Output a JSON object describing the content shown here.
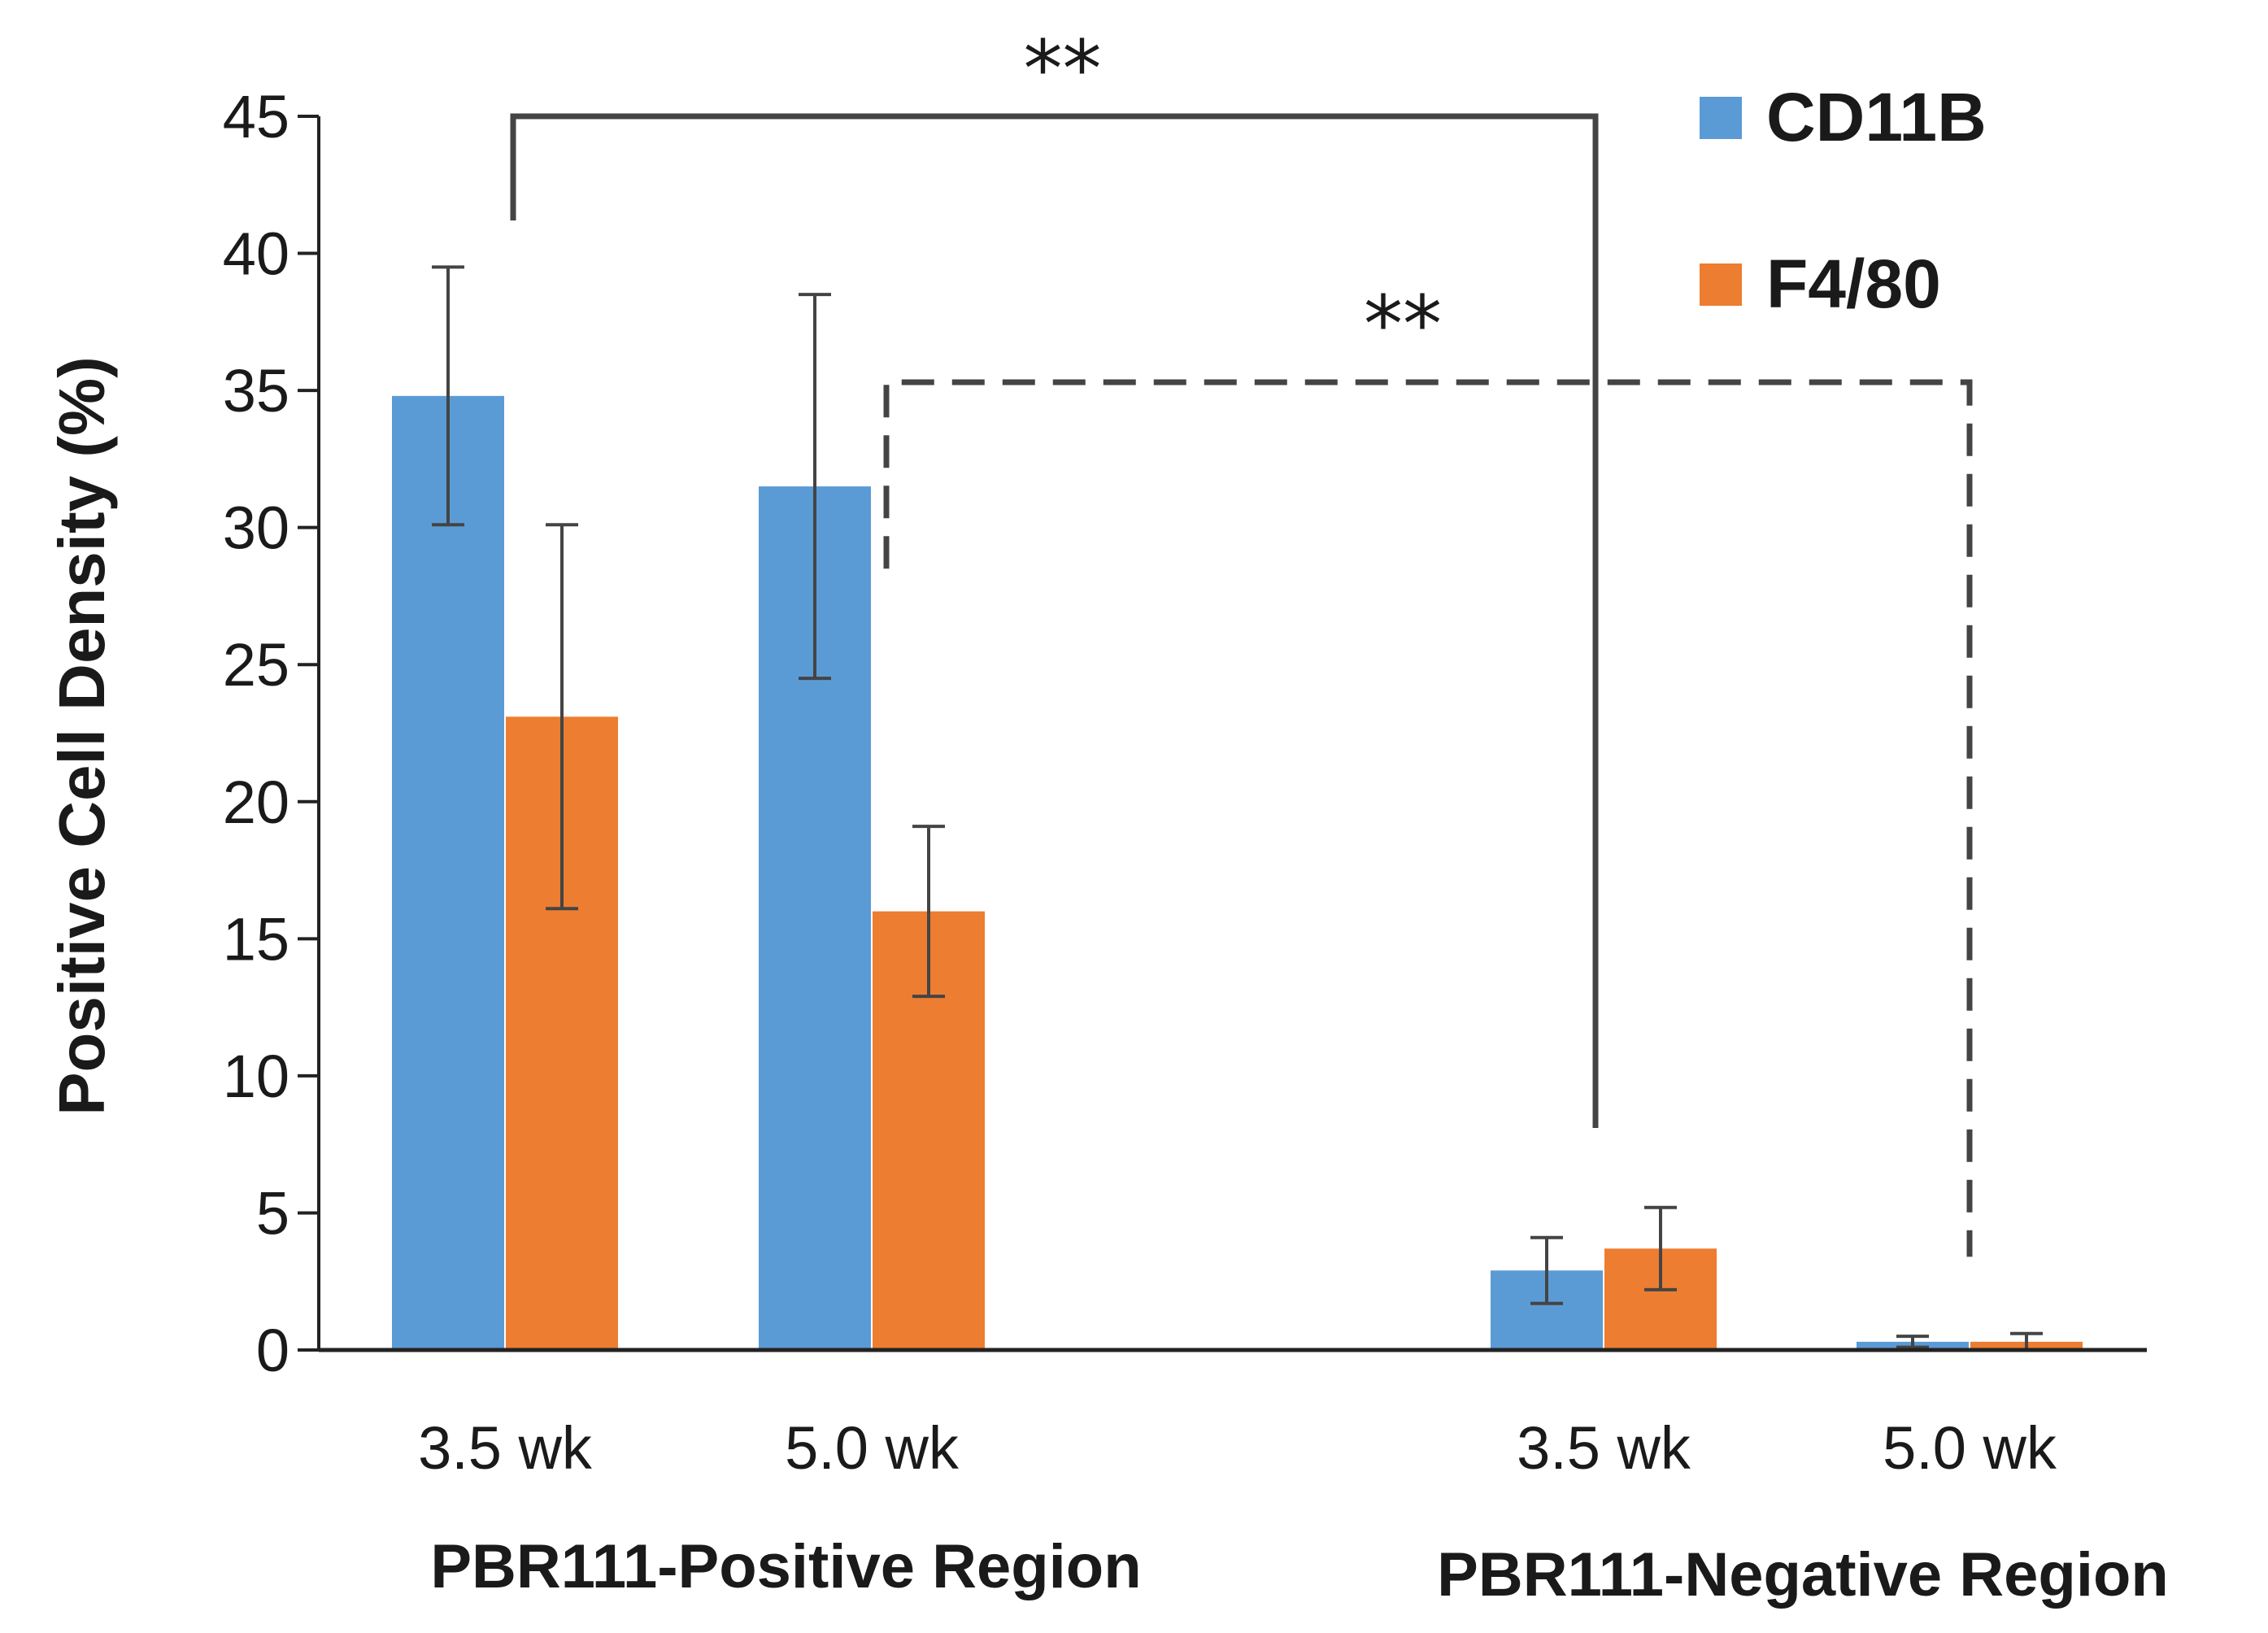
{
  "chart_data": {
    "type": "bar",
    "ylabel": "Positive Cell Density (%)",
    "ylim": [
      0,
      45
    ],
    "yticks": [
      "0",
      "5",
      "10",
      "15",
      "20",
      "25",
      "30",
      "35",
      "40",
      "45"
    ],
    "categories": [
      "3.5 wk",
      "5.0 wk",
      "3.5 wk",
      "5.0 wk"
    ],
    "groups": [
      {
        "label": "PBR111-Positive Region",
        "categories": [
          "3.5 wk",
          "5.0 wk"
        ]
      },
      {
        "label": "PBR111-Negative Region",
        "categories": [
          "3.5 wk",
          "5.0 wk"
        ]
      }
    ],
    "series": [
      {
        "name": "CD11B",
        "color": "#5B9BD5",
        "values": [
          34.8,
          31.5,
          2.9,
          0.3
        ],
        "error": [
          4.7,
          7.0,
          1.2,
          0.2
        ]
      },
      {
        "name": "F4/80",
        "color": "#ED7D31",
        "values": [
          23.1,
          16.0,
          3.7,
          0.3
        ],
        "error": [
          7.0,
          3.1,
          1.5,
          0.3
        ]
      }
    ],
    "annotations": [
      {
        "text": "**",
        "style": "solid",
        "from": "CD11B 3.5 wk (PBR111-Positive Region)",
        "to": "3.5 wk (PBR111-Negative Region)"
      },
      {
        "text": "**",
        "style": "dashed",
        "from": "CD11B 5.0 wk (PBR111-Positive Region)",
        "to": "5.0 wk (PBR111-Negative Region)"
      }
    ],
    "legend_position": "top-right"
  }
}
